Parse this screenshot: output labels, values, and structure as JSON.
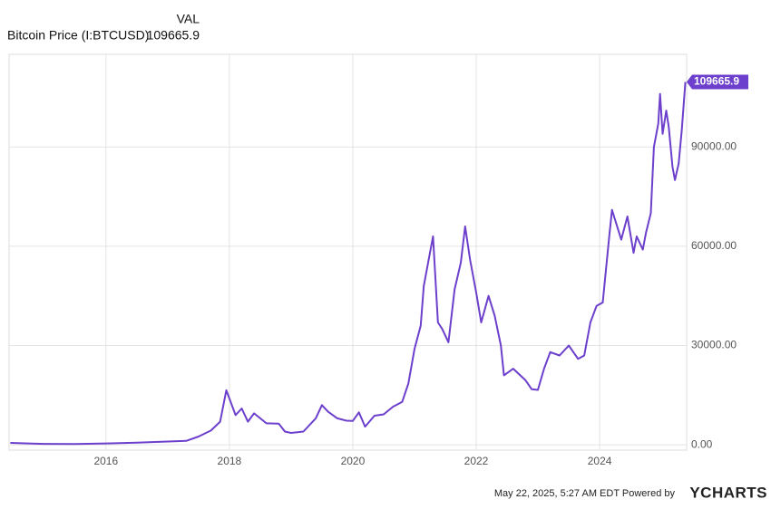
{
  "chart_data": {
    "type": "line",
    "column_header": "VAL",
    "series": [
      {
        "name": "Bitcoin Price (I:BTCUSD)",
        "color": "#6c3fcc",
        "values": [
          600,
          380,
          300,
          250,
          430,
          650,
          1000,
          1200,
          2500,
          4300,
          7000,
          16500,
          9000,
          11000,
          7000,
          9500,
          6500,
          6400,
          4000,
          3600,
          4000,
          8000,
          12000,
          10000,
          8000,
          7300,
          7200,
          9800,
          5500,
          8800,
          9200,
          11500,
          13000,
          18500,
          29000,
          36000,
          48000,
          58000,
          63000,
          37000,
          35000,
          31000,
          47000,
          55000,
          66000,
          56000,
          46000,
          37000,
          45000,
          39000,
          30000,
          21000,
          23000,
          19500,
          16800,
          16600,
          23000,
          28000,
          27000,
          30000,
          26000,
          27000,
          37000,
          42000,
          43000,
          62000,
          71000,
          62000,
          69000,
          58000,
          63000,
          59000,
          64000,
          70000,
          90000,
          97000,
          106000,
          94000,
          101000,
          96000,
          84000,
          80000,
          85000,
          95000,
          109665.9
        ]
      }
    ],
    "x": [
      2014.45,
      2014.8,
      2015.0,
      2015.5,
      2016.0,
      2016.5,
      2017.0,
      2017.3,
      2017.5,
      2017.7,
      2017.85,
      2017.95,
      2018.1,
      2018.2,
      2018.3,
      2018.4,
      2018.6,
      2018.8,
      2018.9,
      2019.0,
      2019.2,
      2019.4,
      2019.5,
      2019.6,
      2019.75,
      2019.9,
      2020.0,
      2020.1,
      2020.2,
      2020.35,
      2020.5,
      2020.65,
      2020.8,
      2020.9,
      2021.0,
      2021.1,
      2021.15,
      2021.25,
      2021.3,
      2021.38,
      2021.45,
      2021.55,
      2021.65,
      2021.75,
      2021.82,
      2021.9,
      2022.0,
      2022.08,
      2022.2,
      2022.3,
      2022.4,
      2022.45,
      2022.6,
      2022.8,
      2022.9,
      2023.0,
      2023.1,
      2023.2,
      2023.35,
      2023.5,
      2023.65,
      2023.75,
      2023.85,
      2023.95,
      2024.05,
      2024.15,
      2024.2,
      2024.35,
      2024.45,
      2024.55,
      2024.6,
      2024.7,
      2024.75,
      2024.83,
      2024.88,
      2024.95,
      2024.98,
      2025.02,
      2025.08,
      2025.12,
      2025.18,
      2025.22,
      2025.28,
      2025.33,
      2025.39
    ],
    "xlim": [
      2014.43,
      2025.41
    ],
    "xticks": [
      2016,
      2018,
      2020,
      2022,
      2024
    ],
    "ylim": [
      -1600,
      118000
    ],
    "yticks": [
      {
        "value": 0,
        "label": "0.00"
      },
      {
        "value": 30000,
        "label": "30000.00"
      },
      {
        "value": 60000,
        "label": "60000.00"
      },
      {
        "value": 90000,
        "label": "90000.00"
      }
    ],
    "grid": true,
    "footer": {
      "timestamp": "May 22, 2025, 5:27 AM EDT Powered by",
      "brand": "YCHARTS"
    }
  }
}
